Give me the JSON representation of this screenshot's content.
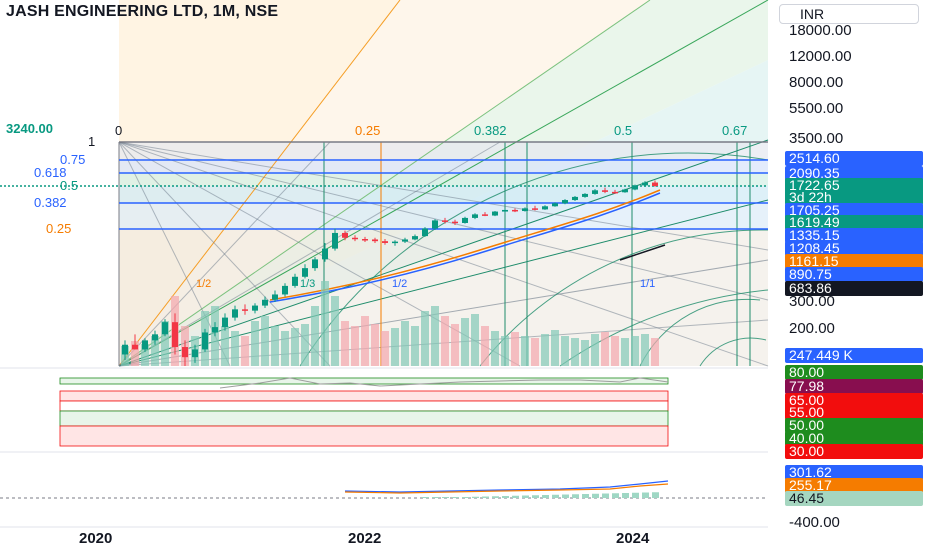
{
  "header": {
    "title": "JASH ENGINEERING LTD, 1M, NSE",
    "currency": "INR"
  },
  "price_axis": {
    "ticks": [
      "18000.00",
      "12000.00",
      "8000.00",
      "5500.00",
      "3500.00",
      "300.00",
      "200.00"
    ]
  },
  "badges": [
    {
      "text": "2514.60",
      "color": "#2962ff"
    },
    {
      "text": "2090.35",
      "color": "#2962ff"
    },
    {
      "text": "1722.65",
      "color": "#089981"
    },
    {
      "text": "3d 22h",
      "color": "#089981"
    },
    {
      "text": "1705.25",
      "color": "#2962ff"
    },
    {
      "text": "1619.49",
      "color": "#089981"
    },
    {
      "text": "1335.15",
      "color": "#2962ff"
    },
    {
      "text": "1208.45",
      "color": "#2962ff"
    },
    {
      "text": "1161.15",
      "color": "#f57c00"
    },
    {
      "text": "890.75",
      "color": "#2962ff"
    },
    {
      "text": "683.86",
      "color": "#131722"
    },
    {
      "text": "247.449 K",
      "color": "#2962ff"
    }
  ],
  "fib_left": {
    "top_value": "3240.00",
    "levels": [
      {
        "text": "1",
        "color": "#131722"
      },
      {
        "text": "0.75",
        "color": "#2962ff"
      },
      {
        "text": "0.618",
        "color": "#2962ff"
      },
      {
        "text": "0.5",
        "color": "#089981"
      },
      {
        "text": "0.382",
        "color": "#2962ff"
      },
      {
        "text": "0.25",
        "color": "#f57c00"
      }
    ]
  },
  "fib_top": [
    {
      "text": "0",
      "color": "#131722"
    },
    {
      "text": "0.25",
      "color": "#f57c00"
    },
    {
      "text": "0.382",
      "color": "#089981"
    },
    {
      "text": "0.5",
      "color": "#089981"
    },
    {
      "text": "0.67",
      "color": "#089981"
    }
  ],
  "fan_labels": [
    "1/2",
    "1/3",
    "1/2",
    "1/1"
  ],
  "rsi_axis": {
    "badges": [
      {
        "text": "80.00",
        "color": "#1e8c1e"
      },
      {
        "text": "77.98",
        "color": "#880e4f"
      },
      {
        "text": "65.00",
        "color": "#f20d0d"
      },
      {
        "text": "55.00",
        "color": "#f20d0d"
      },
      {
        "text": "50.00",
        "color": "#1e8c1e"
      },
      {
        "text": "40.00",
        "color": "#1e8c1e"
      },
      {
        "text": "30.00",
        "color": "#f20d0d"
      }
    ]
  },
  "osc_axis": {
    "badges": [
      {
        "text": "301.62",
        "color": "#2962ff"
      },
      {
        "text": "255.17",
        "color": "#f57c00"
      },
      {
        "text": "46.45",
        "color": "#a5d6c0"
      }
    ],
    "tick": "-400.00"
  },
  "time_axis": [
    "2020",
    "2022",
    "2024"
  ],
  "candles": [
    {
      "o": 120,
      "h": 150,
      "l": 110,
      "c": 140
    },
    {
      "o": 140,
      "h": 165,
      "l": 130,
      "c": 130
    },
    {
      "o": 130,
      "h": 155,
      "l": 125,
      "c": 150
    },
    {
      "o": 150,
      "h": 175,
      "l": 140,
      "c": 165
    },
    {
      "o": 165,
      "h": 210,
      "l": 160,
      "c": 200
    },
    {
      "o": 200,
      "h": 230,
      "l": 120,
      "c": 135
    },
    {
      "o": 135,
      "h": 150,
      "l": 100,
      "c": 115
    },
    {
      "o": 115,
      "h": 140,
      "l": 105,
      "c": 130
    },
    {
      "o": 130,
      "h": 180,
      "l": 125,
      "c": 170
    },
    {
      "o": 170,
      "h": 200,
      "l": 160,
      "c": 185
    },
    {
      "o": 185,
      "h": 230,
      "l": 175,
      "c": 215
    },
    {
      "o": 215,
      "h": 260,
      "l": 205,
      "c": 245
    },
    {
      "o": 245,
      "h": 265,
      "l": 225,
      "c": 240
    },
    {
      "o": 240,
      "h": 270,
      "l": 230,
      "c": 260
    },
    {
      "o": 260,
      "h": 300,
      "l": 250,
      "c": 285
    },
    {
      "o": 285,
      "h": 330,
      "l": 275,
      "c": 310
    },
    {
      "o": 310,
      "h": 370,
      "l": 300,
      "c": 355
    },
    {
      "o": 355,
      "h": 430,
      "l": 345,
      "c": 410
    },
    {
      "o": 410,
      "h": 500,
      "l": 400,
      "c": 470
    },
    {
      "o": 470,
      "h": 560,
      "l": 450,
      "c": 540
    },
    {
      "o": 540,
      "h": 700,
      "l": 520,
      "c": 640
    },
    {
      "o": 640,
      "h": 880,
      "l": 620,
      "c": 820
    },
    {
      "o": 820,
      "h": 850,
      "l": 730,
      "c": 760
    },
    {
      "o": 760,
      "h": 790,
      "l": 720,
      "c": 745
    },
    {
      "o": 745,
      "h": 770,
      "l": 710,
      "c": 740
    },
    {
      "o": 740,
      "h": 760,
      "l": 700,
      "c": 720
    },
    {
      "o": 720,
      "h": 745,
      "l": 680,
      "c": 700
    },
    {
      "o": 700,
      "h": 730,
      "l": 670,
      "c": 715
    },
    {
      "o": 715,
      "h": 760,
      "l": 700,
      "c": 740
    },
    {
      "o": 740,
      "h": 800,
      "l": 730,
      "c": 780
    },
    {
      "o": 780,
      "h": 900,
      "l": 770,
      "c": 880
    },
    {
      "o": 880,
      "h": 1020,
      "l": 860,
      "c": 1000
    },
    {
      "o": 1000,
      "h": 1040,
      "l": 950,
      "c": 980
    },
    {
      "o": 980,
      "h": 1010,
      "l": 930,
      "c": 960
    },
    {
      "o": 960,
      "h": 1060,
      "l": 950,
      "c": 1040
    },
    {
      "o": 1040,
      "h": 1120,
      "l": 1020,
      "c": 1100
    },
    {
      "o": 1100,
      "h": 1140,
      "l": 1070,
      "c": 1080
    },
    {
      "o": 1080,
      "h": 1160,
      "l": 1070,
      "c": 1150
    },
    {
      "o": 1150,
      "h": 1200,
      "l": 1130,
      "c": 1180
    },
    {
      "o": 1180,
      "h": 1210,
      "l": 1140,
      "c": 1160
    },
    {
      "o": 1160,
      "h": 1230,
      "l": 1150,
      "c": 1210
    },
    {
      "o": 1210,
      "h": 1260,
      "l": 1170,
      "c": 1190
    },
    {
      "o": 1190,
      "h": 1270,
      "l": 1180,
      "c": 1250
    },
    {
      "o": 1250,
      "h": 1330,
      "l": 1240,
      "c": 1310
    },
    {
      "o": 1310,
      "h": 1400,
      "l": 1290,
      "c": 1380
    },
    {
      "o": 1380,
      "h": 1470,
      "l": 1360,
      "c": 1450
    },
    {
      "o": 1450,
      "h": 1540,
      "l": 1430,
      "c": 1520
    },
    {
      "o": 1520,
      "h": 1640,
      "l": 1500,
      "c": 1610
    },
    {
      "o": 1610,
      "h": 1680,
      "l": 1540,
      "c": 1570
    },
    {
      "o": 1570,
      "h": 1620,
      "l": 1520,
      "c": 1560
    },
    {
      "o": 1560,
      "h": 1650,
      "l": 1550,
      "c": 1630
    },
    {
      "o": 1630,
      "h": 1760,
      "l": 1610,
      "c": 1740
    },
    {
      "o": 1740,
      "h": 1860,
      "l": 1700,
      "c": 1820
    },
    {
      "o": 1820,
      "h": 1880,
      "l": 1700,
      "c": 1723
    }
  ],
  "volumes": [
    20,
    25,
    22,
    30,
    45,
    70,
    40,
    30,
    55,
    60,
    40,
    35,
    30,
    45,
    50,
    40,
    35,
    38,
    42,
    60,
    85,
    70,
    45,
    40,
    50,
    42,
    35,
    38,
    45,
    40,
    55,
    60,
    50,
    42,
    48,
    52,
    40,
    35,
    30,
    34,
    30,
    28,
    32,
    36,
    30,
    28,
    26,
    32,
    34,
    30,
    28,
    30,
    32,
    28
  ]
}
